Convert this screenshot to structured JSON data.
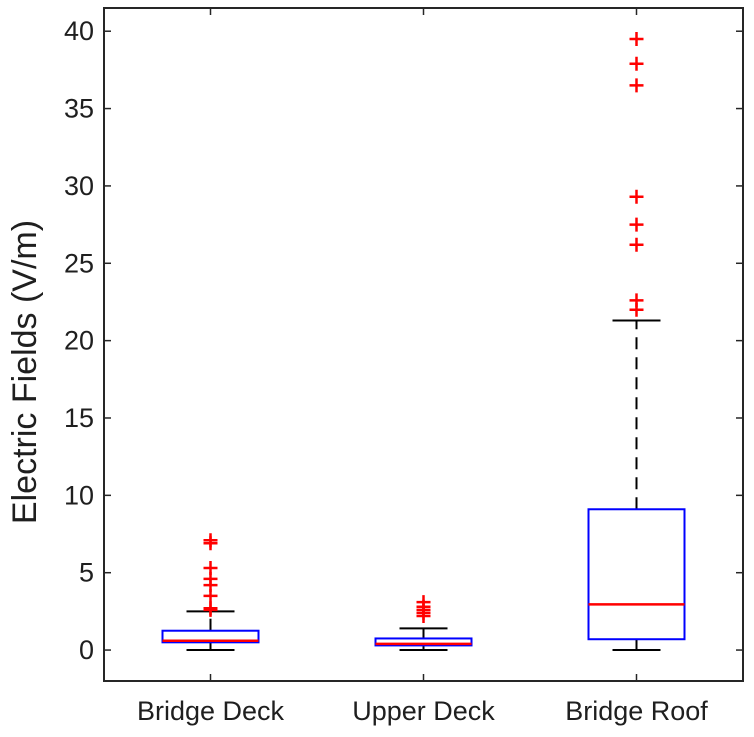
{
  "chart_data": {
    "type": "box",
    "title": "",
    "xlabel": "",
    "ylabel": "Electric Fields (V/m)",
    "ylim": [
      -2,
      41.5
    ],
    "yticks": [
      0,
      5,
      10,
      15,
      20,
      25,
      30,
      35,
      40
    ],
    "grid": false,
    "categories": [
      "Bridge Deck",
      "Upper Deck",
      "Bridge Roof"
    ],
    "boxes": [
      {
        "category": "Bridge Deck",
        "whisker_low": 0.0,
        "q1": 0.5,
        "median": 0.6,
        "q3": 1.25,
        "whisker_high": 2.5,
        "outliers": [
          2.6,
          2.7,
          3.5,
          4.2,
          4.6,
          5.3,
          6.9,
          7.1
        ]
      },
      {
        "category": "Upper Deck",
        "whisker_low": 0.0,
        "q1": 0.3,
        "median": 0.4,
        "q3": 0.75,
        "whisker_high": 1.4,
        "outliers": [
          2.2,
          2.4,
          2.6,
          2.8,
          3.1
        ]
      },
      {
        "category": "Bridge Roof",
        "whisker_low": 0.0,
        "q1": 0.7,
        "median": 2.95,
        "q3": 9.1,
        "whisker_high": 21.3,
        "outliers": [
          22.0,
          22.6,
          26.2,
          27.5,
          29.3,
          36.5,
          37.9,
          39.5
        ]
      }
    ],
    "colors": {
      "box": "#0000ff",
      "median": "#ff0000",
      "outlier": "#ff0000",
      "whisker": "#000000",
      "axis": "#262626"
    }
  }
}
